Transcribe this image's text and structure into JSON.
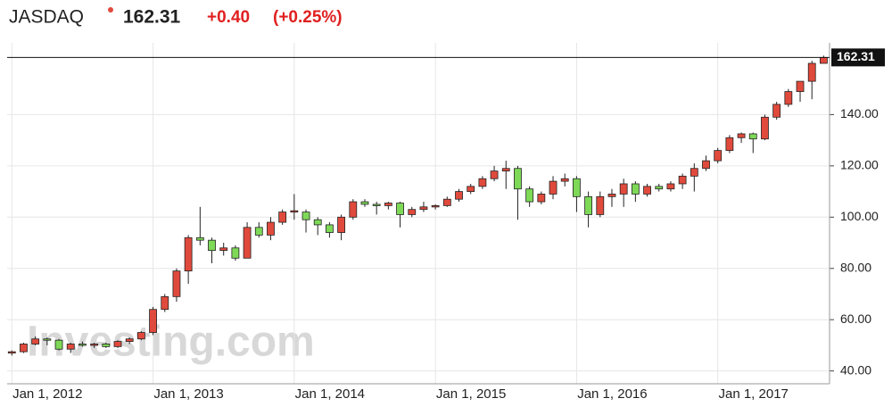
{
  "header": {
    "symbol": "JASDAQ",
    "price": "162.31",
    "change": "+0.40",
    "change_pct": "(+0.25%)"
  },
  "chart_data": {
    "type": "candlestick",
    "watermark": "Investing.com",
    "up_color": "#e04a3c",
    "down_color": "#7ed957",
    "grid": true,
    "last_price": 162.31,
    "x": [
      0,
      1,
      2,
      3,
      4,
      5,
      6,
      7,
      8,
      9,
      10,
      11,
      12,
      13,
      14,
      15,
      16,
      17,
      18,
      19,
      20,
      21,
      22,
      23,
      24,
      25,
      26,
      27,
      28,
      29,
      30,
      31,
      32,
      33,
      34,
      35,
      36,
      37,
      38,
      39,
      40,
      41,
      42,
      43,
      44,
      45,
      46,
      47,
      48,
      49,
      50,
      51,
      52,
      53,
      54,
      55,
      56,
      57,
      58,
      59,
      60,
      61,
      62,
      63,
      64,
      65,
      66,
      67,
      68,
      69
    ],
    "ohlc": [
      [
        47,
        48,
        46,
        47.5
      ],
      [
        47.5,
        51,
        47,
        50.5
      ],
      [
        50.5,
        53.5,
        50,
        52.5
      ],
      [
        52.5,
        53,
        50,
        52
      ],
      [
        52,
        52.5,
        48,
        48.5
      ],
      [
        48.5,
        51,
        47,
        50.5
      ],
      [
        50.5,
        51.5,
        49.5,
        50
      ],
      [
        50,
        51,
        49,
        50.5
      ],
      [
        50.5,
        51,
        49,
        49.5
      ],
      [
        49.5,
        52,
        49,
        51.5
      ],
      [
        51.5,
        53,
        50.5,
        52.5
      ],
      [
        52.5,
        55.5,
        52,
        55
      ],
      [
        55,
        65,
        54,
        64
      ],
      [
        64,
        70,
        63,
        69
      ],
      [
        69,
        80,
        67,
        79
      ],
      [
        79,
        93,
        74,
        92
      ],
      [
        92,
        104,
        89,
        91
      ],
      [
        91,
        92,
        82,
        87
      ],
      [
        87,
        90,
        85,
        88
      ],
      [
        88,
        89,
        83,
        84
      ],
      [
        84,
        98,
        84,
        96
      ],
      [
        96,
        98,
        92,
        93
      ],
      [
        93,
        100,
        91,
        98
      ],
      [
        98,
        103,
        97,
        102
      ],
      [
        102,
        109,
        99,
        102.5
      ],
      [
        102,
        103,
        94,
        99
      ],
      [
        99,
        100,
        93,
        97
      ],
      [
        97,
        98,
        92,
        94
      ],
      [
        94,
        101,
        91,
        100
      ],
      [
        100,
        107,
        99,
        106
      ],
      [
        106,
        107,
        104,
        105
      ],
      [
        105,
        106,
        101,
        104.5
      ],
      [
        104.5,
        106,
        103,
        105.5
      ],
      [
        105.5,
        106,
        96,
        101
      ],
      [
        101,
        104,
        100,
        103
      ],
      [
        103,
        106,
        102,
        104
      ],
      [
        104,
        105,
        103,
        104.5
      ],
      [
        104.5,
        108,
        104,
        107
      ],
      [
        107,
        111,
        106,
        110
      ],
      [
        110,
        113,
        109,
        112
      ],
      [
        112,
        116,
        111,
        115
      ],
      [
        115,
        120,
        114,
        118
      ],
      [
        118,
        122,
        111,
        119
      ],
      [
        119,
        120,
        99,
        111
      ],
      [
        111,
        112,
        104,
        106
      ],
      [
        106,
        110,
        105,
        109
      ],
      [
        109,
        116,
        107,
        114
      ],
      [
        114,
        117,
        112,
        115
      ],
      [
        115,
        116,
        102,
        108
      ],
      [
        108,
        110,
        96,
        101
      ],
      [
        101,
        110,
        100,
        108
      ],
      [
        108,
        111,
        104,
        109
      ],
      [
        109,
        115,
        104,
        113
      ],
      [
        113,
        114,
        106,
        109
      ],
      [
        109,
        113,
        108,
        112
      ],
      [
        112,
        113,
        110,
        111
      ],
      [
        111,
        114,
        110,
        113
      ],
      [
        113,
        117,
        111,
        116
      ],
      [
        116,
        121,
        110,
        119
      ],
      [
        119,
        124,
        118,
        122
      ],
      [
        122,
        127,
        121,
        126
      ],
      [
        126,
        132,
        125,
        131
      ],
      [
        131,
        133,
        129,
        132.5
      ],
      [
        132.5,
        133,
        125,
        130.5
      ],
      [
        130.5,
        140,
        130,
        139
      ],
      [
        139,
        145,
        138,
        144
      ],
      [
        144,
        150,
        143,
        149
      ],
      [
        149,
        153,
        145,
        153
      ],
      [
        153,
        161,
        146,
        160
      ],
      [
        160,
        163,
        160,
        162.31
      ]
    ],
    "xlim": [
      -0.4,
      69.5
    ],
    "ylim": [
      35,
      168
    ],
    "xticks": [
      {
        "value": 0,
        "label": "Jan 1, 2012"
      },
      {
        "value": 12,
        "label": "Jan 1, 2013"
      },
      {
        "value": 24,
        "label": "Jan 1, 2014"
      },
      {
        "value": 36,
        "label": "Jan 1, 2015"
      },
      {
        "value": 48,
        "label": "Jan 1, 2016"
      },
      {
        "value": 60,
        "label": "Jan 1, 2017"
      }
    ],
    "yticks": [
      {
        "value": 40,
        "label": "40.00"
      },
      {
        "value": 60,
        "label": "60.00"
      },
      {
        "value": 80,
        "label": "80.00"
      },
      {
        "value": 100,
        "label": "100.00"
      },
      {
        "value": 120,
        "label": "120.00"
      },
      {
        "value": 140,
        "label": "140.00"
      }
    ]
  }
}
